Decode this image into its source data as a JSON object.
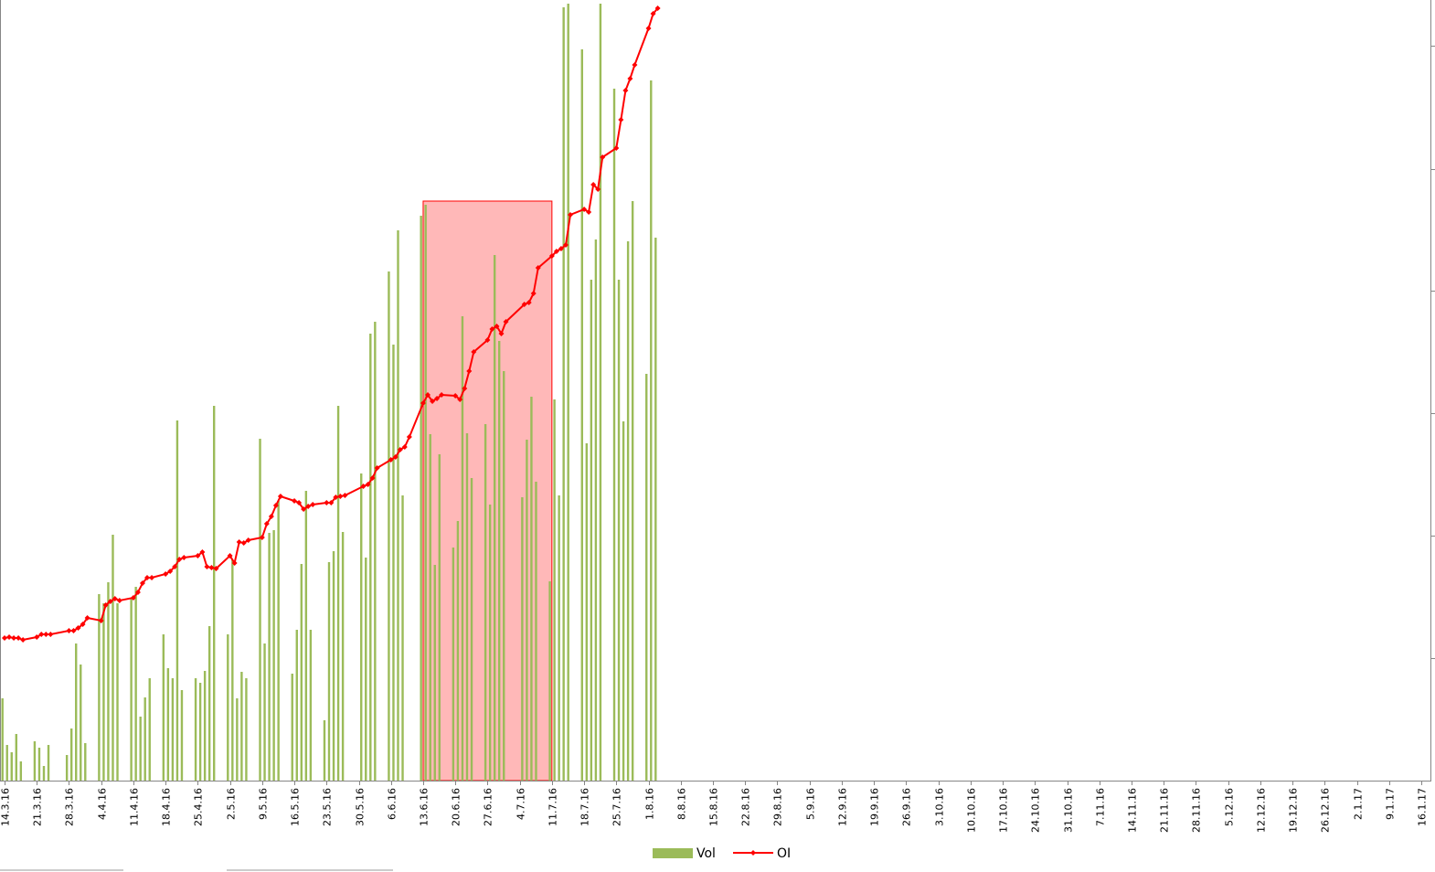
{
  "chart_data": {
    "type": "bar",
    "x": [
      "14.3.16",
      "15.3.16",
      "16.3.16",
      "17.3.16",
      "18.3.16",
      "21.3.16",
      "22.3.16",
      "23.3.16",
      "24.3.16",
      "28.3.16",
      "29.3.16",
      "30.3.16",
      "31.3.16",
      "1.4.16",
      "4.4.16",
      "5.4.16",
      "6.4.16",
      "7.4.16",
      "8.4.16",
      "11.4.16",
      "12.4.16",
      "13.4.16",
      "14.4.16",
      "15.4.16",
      "18.4.16",
      "19.4.16",
      "20.4.16",
      "21.4.16",
      "22.4.16",
      "25.4.16",
      "26.4.16",
      "27.4.16",
      "28.4.16",
      "29.4.16",
      "2.5.16",
      "3.5.16",
      "4.5.16",
      "5.5.16",
      "6.5.16",
      "9.5.16",
      "10.5.16",
      "11.5.16",
      "12.5.16",
      "13.5.16",
      "16.5.16",
      "17.5.16",
      "18.5.16",
      "19.5.16",
      "20.5.16",
      "23.5.16",
      "24.5.16",
      "25.5.16",
      "26.5.16",
      "27.5.16",
      "31.5.16",
      "1.6.16",
      "2.6.16",
      "3.6.16",
      "6.6.16",
      "7.6.16",
      "8.6.16",
      "9.6.16",
      "10.6.16",
      "13.6.16",
      "14.6.16",
      "15.6.16",
      "16.6.16",
      "17.6.16",
      "20.6.16",
      "21.6.16",
      "22.6.16",
      "23.6.16",
      "24.6.16",
      "27.6.16",
      "28.6.16",
      "29.6.16",
      "30.6.16",
      "1.7.16",
      "5.7.16",
      "6.7.16",
      "7.7.16",
      "8.7.16",
      "11.7.16",
      "12.7.16",
      "13.7.16",
      "14.7.16",
      "15.7.16",
      "18.7.16",
      "19.7.16",
      "20.7.16",
      "21.7.16",
      "22.7.16",
      "25.7.16",
      "26.7.16",
      "27.7.16",
      "28.7.16",
      "29.7.16",
      "1.8.16",
      "2.8.16",
      "3.8.16"
    ],
    "series": [
      {
        "name": "Vol",
        "type": "bar",
        "color": "#9bbb59",
        "values": [
          90,
          39,
          31,
          51,
          21,
          43,
          36,
          16,
          39,
          28,
          57,
          150,
          127,
          41,
          204,
          194,
          217,
          269,
          194,
          200,
          212,
          70,
          91,
          112,
          160,
          123,
          112,
          394,
          99,
          112,
          107,
          120,
          169,
          410,
          160,
          242,
          90,
          119,
          112,
          374,
          150,
          271,
          274,
          306,
          117,
          165,
          237,
          317,
          165,
          66,
          239,
          251,
          410,
          272,
          336,
          244,
          489,
          502,
          557,
          477,
          602,
          312,
          null,
          618,
          630,
          379,
          236,
          357,
          255,
          284,
          508,
          380,
          331,
          390,
          302,
          575,
          481,
          448,
          310,
          373,
          420,
          327,
          218,
          417,
          312,
          846,
          850,
          800,
          369,
          548,
          592,
          850,
          757,
          548,
          393,
          590,
          634,
          445,
          766,
          594
        ]
      },
      {
        "name": "OI",
        "type": "line",
        "color": "#ff0000",
        "axis": "y2",
        "values": [
          156,
          157,
          156,
          156,
          154,
          157,
          160,
          160,
          160,
          164,
          164,
          167,
          171,
          178,
          175,
          192,
          196,
          199,
          197,
          200,
          206,
          216,
          222,
          222,
          226,
          229,
          234,
          242,
          244,
          246,
          250,
          234,
          233,
          232,
          246,
          238,
          261,
          260,
          263,
          266,
          281,
          289,
          301,
          311,
          306,
          304,
          297,
          300,
          302,
          304,
          304,
          310,
          311,
          312,
          322,
          324,
          331,
          342,
          351,
          354,
          362,
          365,
          376,
          413,
          422,
          415,
          418,
          422,
          421,
          417,
          429,
          448,
          469,
          482,
          494,
          497,
          489,
          502,
          521,
          523,
          533,
          561,
          574,
          579,
          582,
          586,
          619,
          625,
          622,
          652,
          647,
          682,
          692,
          723,
          755,
          768,
          783,
          823,
          839,
          845
        ]
      }
    ],
    "xlim": [
      "14.3.16",
      "16.1.17"
    ],
    "xticks": [
      "14.3.16",
      "21.3.16",
      "28.3.16",
      "4.4.16",
      "11.4.16",
      "18.4.16",
      "25.4.16",
      "2.5.16",
      "9.5.16",
      "16.5.16",
      "23.5.16",
      "30.5.16",
      "6.6.16",
      "13.6.16",
      "20.6.16",
      "27.6.16",
      "4.7.16",
      "11.7.16",
      "18.7.16",
      "25.7.16",
      "1.8.16",
      "8.8.16",
      "15.8.16",
      "22.8.16",
      "29.8.16",
      "5.9.16",
      "12.9.16",
      "19.9.16",
      "26.9.16",
      "3.10.16",
      "10.10.16",
      "17.10.16",
      "24.10.16",
      "31.10.16",
      "7.11.16",
      "14.11.16",
      "21.11.16",
      "28.11.16",
      "5.12.16",
      "12.12.16",
      "19.12.16",
      "26.12.16",
      "2.1.17",
      "9.1.17",
      "16.1.17"
    ],
    "ylim": [
      0,
      850
    ],
    "y2lim": [
      0,
      850
    ],
    "highlight": {
      "x": [
        "13.6.16",
        "11.7.16"
      ],
      "y": 634,
      "color": "#ff0000"
    },
    "legend": "bottom"
  }
}
